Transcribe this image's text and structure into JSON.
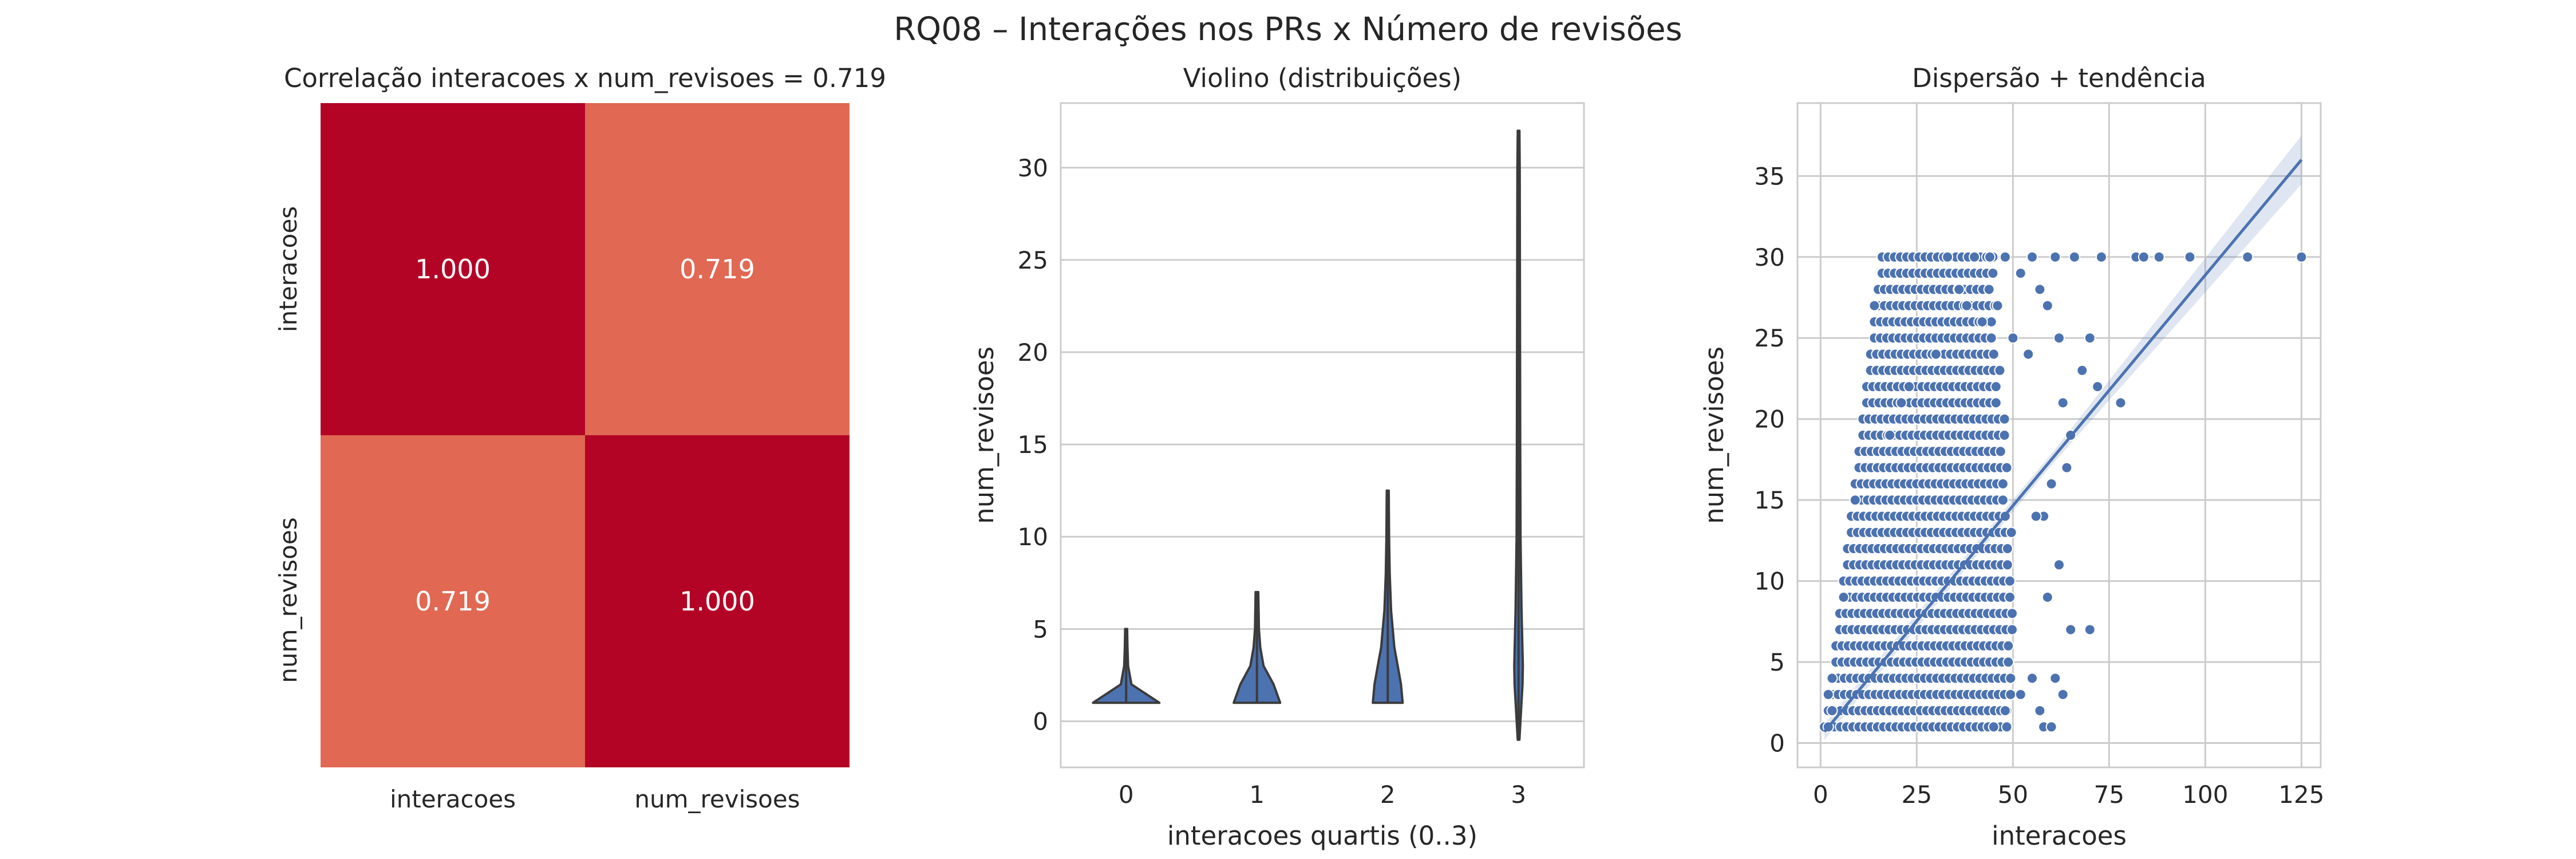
{
  "suptitle": "RQ08 – Interações nos PRs x Número de revisões",
  "colors": {
    "heat_high": "#b40426",
    "heat_mid": "#e16852",
    "violin": "#4c72b0",
    "violin_edge": "#3b3b3b",
    "scatter": "#4c72b0",
    "grid": "#cccccc"
  },
  "chart_data": [
    {
      "type": "heatmap",
      "title": "Correlação interacoes x num_revisoes = 0.719",
      "rows": [
        "interacoes",
        "num_revisoes"
      ],
      "cols": [
        "interacoes",
        "num_revisoes"
      ],
      "values": [
        [
          1.0,
          0.719
        ],
        [
          0.719,
          1.0
        ]
      ],
      "annotations": [
        [
          "1.000",
          "0.719"
        ],
        [
          "0.719",
          "1.000"
        ]
      ],
      "colormap": "coolwarm",
      "colorbar": false
    },
    {
      "type": "violin",
      "title": "Violino (distribuições)",
      "xlabel": "interacoes quartis (0..3)",
      "ylabel": "num_revisoes",
      "categories": [
        "0",
        "1",
        "2",
        "3"
      ],
      "ylim": [
        -2.5,
        33.5
      ],
      "yticks": [
        0,
        5,
        10,
        15,
        20,
        25,
        30
      ],
      "grid": true,
      "violins": [
        {
          "category": "0",
          "min": 1,
          "max": 5,
          "profile": [
            [
              1,
              10
            ],
            [
              2,
              1.6
            ],
            [
              3,
              0.6
            ],
            [
              4,
              0.4
            ],
            [
              5,
              0.3
            ]
          ]
        },
        {
          "category": "1",
          "min": 1,
          "max": 7,
          "profile": [
            [
              1,
              7
            ],
            [
              2,
              5
            ],
            [
              3,
              2
            ],
            [
              4,
              1
            ],
            [
              5,
              0.6
            ],
            [
              6,
              0.5
            ],
            [
              7,
              0.4
            ]
          ]
        },
        {
          "category": "2",
          "min": 1,
          "max": 12.5,
          "profile": [
            [
              1,
              4.5
            ],
            [
              2,
              4
            ],
            [
              3,
              3
            ],
            [
              4,
              2
            ],
            [
              6,
              1
            ],
            [
              8,
              0.6
            ],
            [
              10,
              0.4
            ],
            [
              12.5,
              0.3
            ]
          ]
        },
        {
          "category": "3",
          "min": -1,
          "max": 32,
          "profile": [
            [
              -1,
              0.2
            ],
            [
              2,
              1.2
            ],
            [
              3,
              1.3
            ],
            [
              6,
              0.9
            ],
            [
              10,
              0.6
            ],
            [
              15,
              0.5
            ],
            [
              20,
              0.45
            ],
            [
              25,
              0.4
            ],
            [
              30,
              0.35
            ],
            [
              32,
              0.2
            ]
          ]
        }
      ]
    },
    {
      "type": "scatter",
      "title": "Dispersão + tendência",
      "xlabel": "interacoes",
      "ylabel": "num_revisoes",
      "xlim": [
        -6,
        130
      ],
      "ylim": [
        -1.5,
        39.5
      ],
      "xticks": [
        0,
        25,
        50,
        75,
        100,
        125
      ],
      "yticks": [
        0,
        5,
        10,
        15,
        20,
        25,
        30,
        35
      ],
      "grid": true,
      "dense_region": {
        "description": "dense cloud of PRs with integer num_revisoes",
        "y_values": [
          1,
          2,
          3,
          4,
          5,
          6,
          7,
          8,
          9,
          10,
          11,
          12,
          13,
          14,
          15,
          16,
          17,
          18,
          19,
          20,
          21,
          22,
          23,
          24,
          25,
          26,
          27,
          28,
          29,
          30
        ],
        "x_min_per_y": "approx 1 + 0.5*y",
        "x_max_per_y": "approx 50"
      },
      "points": [
        [
          1,
          1
        ],
        [
          2,
          1
        ],
        [
          3,
          2
        ],
        [
          2,
          3
        ],
        [
          3,
          4
        ],
        [
          6,
          9
        ],
        [
          9,
          15
        ],
        [
          14,
          27
        ],
        [
          18,
          19
        ],
        [
          21,
          21
        ],
        [
          23,
          22
        ],
        [
          30,
          24
        ],
        [
          33,
          30
        ],
        [
          36,
          28
        ],
        [
          38,
          27
        ],
        [
          40,
          30
        ],
        [
          42,
          26
        ],
        [
          44,
          30
        ],
        [
          46,
          27
        ],
        [
          48,
          30
        ],
        [
          50,
          25
        ],
        [
          52,
          29
        ],
        [
          54,
          24
        ],
        [
          55,
          30
        ],
        [
          57,
          28
        ],
        [
          59,
          27
        ],
        [
          60,
          16
        ],
        [
          61,
          30
        ],
        [
          62,
          25
        ],
        [
          63,
          21
        ],
        [
          64,
          17
        ],
        [
          65,
          19
        ],
        [
          66,
          30
        ],
        [
          68,
          23
        ],
        [
          70,
          25
        ],
        [
          72,
          22
        ],
        [
          73,
          30
        ],
        [
          78,
          21
        ],
        [
          82,
          30
        ],
        [
          84,
          30
        ],
        [
          88,
          30
        ],
        [
          96,
          30
        ],
        [
          111,
          30
        ],
        [
          125,
          30
        ],
        [
          45,
          1
        ],
        [
          48,
          2
        ],
        [
          52,
          3
        ],
        [
          55,
          4
        ],
        [
          57,
          2
        ],
        [
          58,
          1
        ],
        [
          59,
          9
        ],
        [
          60,
          1
        ],
        [
          62,
          11
        ],
        [
          63,
          3
        ],
        [
          65,
          7
        ],
        [
          70,
          7
        ],
        [
          58,
          14
        ],
        [
          56,
          14
        ],
        [
          61,
          4
        ]
      ],
      "trend": {
        "x": [
          1,
          125
        ],
        "y": [
          0.7,
          36.0
        ],
        "ci_halfwidth_at_x": [
          [
            1,
            0.5
          ],
          [
            60,
            0.35
          ],
          [
            125,
            1.5
          ]
        ]
      }
    }
  ]
}
